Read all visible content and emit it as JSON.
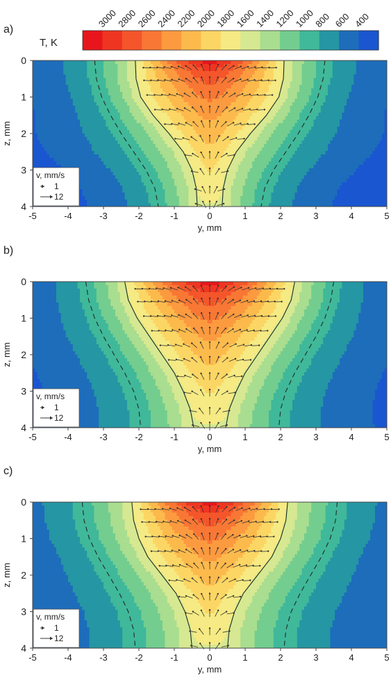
{
  "colorbar": {
    "label": "T, K",
    "ticks": [
      "3000",
      "2800",
      "2600",
      "2400",
      "2200",
      "2000",
      "1800",
      "1600",
      "1400",
      "1200",
      "1000",
      "800",
      "600",
      "400"
    ],
    "colors": [
      "#e8161c",
      "#ef3522",
      "#f4552b",
      "#f97734",
      "#fc9a3f",
      "#fdba4c",
      "#fcd664",
      "#f5ea83",
      "#d6e891",
      "#a9dd8f",
      "#73cd8f",
      "#40b89a",
      "#2596a3",
      "#1d6dbb",
      "#1a56d0"
    ],
    "vmin": 400,
    "vmax": 3000
  },
  "xaxis_label": "y, mm",
  "yaxis_label": "z, mm",
  "x_ticks": [
    "-5",
    "-4",
    "-3",
    "-2",
    "-1",
    "0",
    "1",
    "2",
    "3",
    "4",
    "5"
  ],
  "y_ticks": [
    "0",
    "1",
    "2",
    "3",
    "4"
  ],
  "vector_legend": {
    "title": "v, mm/s",
    "items": [
      "1",
      "12"
    ]
  },
  "chart_data": [
    {
      "type": "heatmap",
      "panel_label": "a)",
      "xlim": [
        -5,
        5
      ],
      "ylim": [
        0,
        4
      ],
      "peak_temperature": 3000,
      "isotherm_halfwidths_mm": {
        "z": [
          0,
          0.5,
          1,
          1.5,
          2,
          2.5,
          3,
          3.5,
          4
        ],
        "solid_line": [
          2.1,
          2.08,
          1.95,
          1.6,
          1.15,
          0.75,
          0.5,
          0.38,
          0.35
        ],
        "dashed_line": [
          3.25,
          3.2,
          3.05,
          2.8,
          2.5,
          2.15,
          1.8,
          1.55,
          1.45
        ]
      }
    },
    {
      "type": "heatmap",
      "panel_label": "b)",
      "xlim": [
        -5,
        5
      ],
      "ylim": [
        0,
        4
      ],
      "peak_temperature": 3000,
      "isotherm_halfwidths_mm": {
        "z": [
          0,
          0.5,
          1,
          1.5,
          2,
          2.5,
          3,
          3.5,
          4
        ],
        "solid_line": [
          2.4,
          2.3,
          2.05,
          1.7,
          1.35,
          1.0,
          0.75,
          0.55,
          0.45
        ],
        "dashed_line": [
          3.5,
          3.42,
          3.25,
          3.0,
          2.7,
          2.4,
          2.15,
          2.0,
          1.95
        ]
      }
    },
    {
      "type": "heatmap",
      "panel_label": "c)",
      "xlim": [
        -5,
        5
      ],
      "ylim": [
        0,
        4
      ],
      "peak_temperature": 3000,
      "isotherm_halfwidths_mm": {
        "z": [
          0,
          0.5,
          1,
          1.5,
          2,
          2.5,
          3,
          3.5,
          4
        ],
        "solid_line": [
          2.2,
          2.15,
          2.0,
          1.75,
          1.35,
          0.95,
          0.7,
          0.55,
          0.5
        ],
        "dashed_line": [
          3.6,
          3.55,
          3.4,
          3.15,
          2.85,
          2.55,
          2.3,
          2.15,
          2.1
        ]
      }
    }
  ]
}
